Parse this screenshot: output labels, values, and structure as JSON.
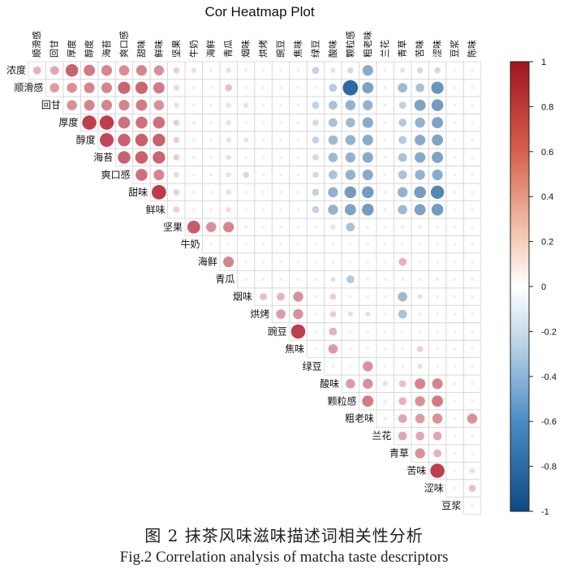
{
  "chart_data": {
    "type": "heatmap",
    "title": "Cor Heatmap Plot",
    "variables": [
      "浓度",
      "顺滑感",
      "回甘",
      "厚度",
      "醇度",
      "海苔",
      "爽口感",
      "甜味",
      "鲜味",
      "坚果",
      "牛奶",
      "海鲜",
      "青瓜",
      "烟味",
      "烘烤",
      "豌豆",
      "焦味",
      "绿豆",
      "酸味",
      "颗粒感",
      "粗老味",
      "兰花",
      "青草",
      "苦味",
      "涩味",
      "豆浆",
      "陈味"
    ],
    "correlations": [
      [
        "浓度",
        "顺滑感",
        0.25
      ],
      [
        "浓度",
        "回甘",
        0.3
      ],
      [
        "浓度",
        "厚度",
        0.62
      ],
      [
        "浓度",
        "醇度",
        0.5
      ],
      [
        "浓度",
        "海苔",
        0.45
      ],
      [
        "浓度",
        "爽口感",
        0.42
      ],
      [
        "浓度",
        "甜味",
        0.45
      ],
      [
        "浓度",
        "鲜味",
        0.4
      ],
      [
        "浓度",
        "坚果",
        0.15
      ],
      [
        "浓度",
        "牛奶",
        0.1
      ],
      [
        "浓度",
        "海鲜",
        0.05
      ],
      [
        "浓度",
        "青瓜",
        0.1
      ],
      [
        "浓度",
        "烟味",
        0.05
      ],
      [
        "浓度",
        "烘烤",
        -0.05
      ],
      [
        "浓度",
        "焦味",
        -0.05
      ],
      [
        "浓度",
        "绿豆",
        -0.2
      ],
      [
        "浓度",
        "酸味",
        -0.1
      ],
      [
        "浓度",
        "颗粒感",
        -0.15
      ],
      [
        "浓度",
        "粗老味",
        -0.45
      ],
      [
        "浓度",
        "兰花",
        -0.05
      ],
      [
        "浓度",
        "青草",
        -0.1
      ],
      [
        "浓度",
        "苦味",
        -0.15
      ],
      [
        "浓度",
        "涩味",
        -0.15
      ],
      [
        "顺滑感",
        "回甘",
        0.35
      ],
      [
        "顺滑感",
        "厚度",
        0.4
      ],
      [
        "顺滑感",
        "醇度",
        0.45
      ],
      [
        "顺滑感",
        "海苔",
        0.45
      ],
      [
        "顺滑感",
        "爽口感",
        0.6
      ],
      [
        "顺滑感",
        "甜味",
        0.6
      ],
      [
        "顺滑感",
        "鲜味",
        0.5
      ],
      [
        "顺滑感",
        "坚果",
        0.12
      ],
      [
        "顺滑感",
        "牛奶",
        0.05
      ],
      [
        "顺滑感",
        "青瓜",
        0.2
      ],
      [
        "顺滑感",
        "酸味",
        -0.25
      ],
      [
        "顺滑感",
        "颗粒感",
        -0.92
      ],
      [
        "顺滑感",
        "粗老味",
        -0.5
      ],
      [
        "顺滑感",
        "兰花",
        -0.05
      ],
      [
        "顺滑感",
        "青草",
        -0.35
      ],
      [
        "顺滑感",
        "苦味",
        -0.3
      ],
      [
        "顺滑感",
        "涩味",
        -0.6
      ],
      [
        "回甘",
        "厚度",
        0.4
      ],
      [
        "回甘",
        "醇度",
        0.45
      ],
      [
        "回甘",
        "海苔",
        0.45
      ],
      [
        "回甘",
        "爽口感",
        0.45
      ],
      [
        "回甘",
        "甜味",
        0.5
      ],
      [
        "回甘",
        "鲜味",
        0.4
      ],
      [
        "回甘",
        "坚果",
        0.1
      ],
      [
        "回甘",
        "牛奶",
        0.05
      ],
      [
        "回甘",
        "青瓜",
        0.1
      ],
      [
        "回甘",
        "烟味",
        -0.1
      ],
      [
        "回甘",
        "烘烤",
        -0.05
      ],
      [
        "回甘",
        "焦味",
        -0.05
      ],
      [
        "回甘",
        "绿豆",
        -0.2
      ],
      [
        "回甘",
        "酸味",
        -0.3
      ],
      [
        "回甘",
        "颗粒感",
        -0.4
      ],
      [
        "回甘",
        "粗老味",
        -0.4
      ],
      [
        "回甘",
        "兰花",
        -0.05
      ],
      [
        "回甘",
        "青草",
        -0.2
      ],
      [
        "回甘",
        "苦味",
        -0.5
      ],
      [
        "回甘",
        "涩味",
        -0.55
      ],
      [
        "厚度",
        "醇度",
        0.8
      ],
      [
        "厚度",
        "海苔",
        0.8
      ],
      [
        "厚度",
        "爽口感",
        0.55
      ],
      [
        "厚度",
        "甜味",
        0.55
      ],
      [
        "厚度",
        "鲜味",
        0.55
      ],
      [
        "厚度",
        "坚果",
        0.15
      ],
      [
        "厚度",
        "牛奶",
        0.05
      ],
      [
        "厚度",
        "青瓜",
        0.1
      ],
      [
        "厚度",
        "绿豆",
        -0.15
      ],
      [
        "厚度",
        "酸味",
        -0.3
      ],
      [
        "厚度",
        "颗粒感",
        -0.35
      ],
      [
        "厚度",
        "粗老味",
        -0.45
      ],
      [
        "厚度",
        "兰花",
        -0.05
      ],
      [
        "厚度",
        "青草",
        -0.25
      ],
      [
        "厚度",
        "苦味",
        -0.4
      ],
      [
        "厚度",
        "涩味",
        -0.5
      ],
      [
        "醇度",
        "海苔",
        0.75
      ],
      [
        "醇度",
        "爽口感",
        0.62
      ],
      [
        "醇度",
        "甜味",
        0.62
      ],
      [
        "醇度",
        "鲜味",
        0.62
      ],
      [
        "醇度",
        "坚果",
        0.15
      ],
      [
        "醇度",
        "牛奶",
        0.05
      ],
      [
        "醇度",
        "青瓜",
        0.1
      ],
      [
        "醇度",
        "烟味",
        -0.1
      ],
      [
        "醇度",
        "绿豆",
        -0.2
      ],
      [
        "醇度",
        "酸味",
        -0.35
      ],
      [
        "醇度",
        "颗粒感",
        -0.4
      ],
      [
        "醇度",
        "粗老味",
        -0.45
      ],
      [
        "醇度",
        "兰花",
        -0.05
      ],
      [
        "醇度",
        "青草",
        -0.25
      ],
      [
        "醇度",
        "苦味",
        -0.45
      ],
      [
        "醇度",
        "涩味",
        -0.5
      ],
      [
        "海苔",
        "爽口感",
        0.62
      ],
      [
        "海苔",
        "甜味",
        0.62
      ],
      [
        "海苔",
        "鲜味",
        0.6
      ],
      [
        "海苔",
        "坚果",
        0.15
      ],
      [
        "海苔",
        "牛奶",
        0.05
      ],
      [
        "海苔",
        "青瓜",
        0.1
      ],
      [
        "海苔",
        "绿豆",
        -0.15
      ],
      [
        "海苔",
        "酸味",
        -0.35
      ],
      [
        "海苔",
        "颗粒感",
        -0.4
      ],
      [
        "海苔",
        "粗老味",
        -0.45
      ],
      [
        "海苔",
        "兰花",
        -0.05
      ],
      [
        "海苔",
        "青草",
        -0.3
      ],
      [
        "海苔",
        "苦味",
        -0.45
      ],
      [
        "海苔",
        "涩味",
        -0.5
      ],
      [
        "爽口感",
        "甜味",
        0.55
      ],
      [
        "爽口感",
        "鲜味",
        0.45
      ],
      [
        "爽口感",
        "坚果",
        0.12
      ],
      [
        "爽口感",
        "牛奶",
        0.05
      ],
      [
        "爽口感",
        "海鲜",
        0.05
      ],
      [
        "爽口感",
        "青瓜",
        0.1
      ],
      [
        "爽口感",
        "烟味",
        -0.15
      ],
      [
        "爽口感",
        "绿豆",
        -0.15
      ],
      [
        "爽口感",
        "酸味",
        -0.3
      ],
      [
        "爽口感",
        "颗粒感",
        -0.4
      ],
      [
        "爽口感",
        "粗老味",
        -0.45
      ],
      [
        "爽口感",
        "兰花",
        -0.05
      ],
      [
        "爽口感",
        "青草",
        -0.3
      ],
      [
        "爽口感",
        "苦味",
        -0.4
      ],
      [
        "爽口感",
        "涩味",
        -0.45
      ],
      [
        "甜味",
        "鲜味",
        0.82
      ],
      [
        "甜味",
        "坚果",
        0.15
      ],
      [
        "甜味",
        "牛奶",
        0.05
      ],
      [
        "甜味",
        "青瓜",
        0.1
      ],
      [
        "甜味",
        "绿豆",
        -0.2
      ],
      [
        "甜味",
        "酸味",
        -0.4
      ],
      [
        "甜味",
        "颗粒感",
        -0.55
      ],
      [
        "甜味",
        "粗老味",
        -0.55
      ],
      [
        "甜味",
        "兰花",
        -0.05
      ],
      [
        "甜味",
        "青草",
        -0.4
      ],
      [
        "甜味",
        "苦味",
        -0.55
      ],
      [
        "甜味",
        "涩味",
        -0.7
      ],
      [
        "鲜味",
        "坚果",
        0.15
      ],
      [
        "鲜味",
        "牛奶",
        0.05
      ],
      [
        "鲜味",
        "青瓜",
        0.1
      ],
      [
        "鲜味",
        "绿豆",
        -0.2
      ],
      [
        "鲜味",
        "酸味",
        -0.4
      ],
      [
        "鲜味",
        "颗粒感",
        -0.5
      ],
      [
        "鲜味",
        "粗老味",
        -0.55
      ],
      [
        "鲜味",
        "兰花",
        -0.05
      ],
      [
        "鲜味",
        "青草",
        -0.35
      ],
      [
        "鲜味",
        "苦味",
        -0.5
      ],
      [
        "鲜味",
        "涩味",
        -0.55
      ],
      [
        "坚果",
        "牛奶",
        0.65
      ],
      [
        "坚果",
        "海鲜",
        0.4
      ],
      [
        "坚果",
        "青瓜",
        0.45
      ],
      [
        "坚果",
        "酸味",
        -0.1
      ],
      [
        "坚果",
        "颗粒感",
        -0.3
      ],
      [
        "坚果",
        "粗老味",
        -0.05
      ],
      [
        "坚果",
        "青草",
        -0.05
      ],
      [
        "坚果",
        "苦味",
        -0.05
      ],
      [
        "海鲜",
        "青瓜",
        0.45
      ],
      [
        "海鲜",
        "青草",
        0.25
      ],
      [
        "青瓜",
        "酸味",
        -0.1
      ],
      [
        "青瓜",
        "颗粒感",
        -0.25
      ],
      [
        "青瓜",
        "粗老味",
        -0.05
      ],
      [
        "青瓜",
        "苦味",
        -0.05
      ],
      [
        "青瓜",
        "涩味",
        -0.05
      ],
      [
        "烟味",
        "烘烤",
        0.2
      ],
      [
        "烟味",
        "豌豆",
        0.25
      ],
      [
        "烟味",
        "焦味",
        0.4
      ],
      [
        "烟味",
        "酸味",
        0.15
      ],
      [
        "烟味",
        "青草",
        -0.35
      ],
      [
        "烟味",
        "苦味",
        -0.1
      ],
      [
        "烘烤",
        "豌豆",
        0.35
      ],
      [
        "烘烤",
        "焦味",
        0.4
      ],
      [
        "烘烤",
        "酸味",
        0.15
      ],
      [
        "烘烤",
        "颗粒感",
        0.1
      ],
      [
        "烘烤",
        "粗老味",
        0.1
      ],
      [
        "烘烤",
        "青草",
        -0.3
      ],
      [
        "烘烤",
        "苦味",
        -0.05
      ],
      [
        "豌豆",
        "焦味",
        0.8
      ],
      [
        "豌豆",
        "酸味",
        0.25
      ],
      [
        "焦味",
        "酸味",
        0.35
      ],
      [
        "焦味",
        "苦味",
        0.15
      ],
      [
        "绿豆",
        "粗老味",
        0.4
      ],
      [
        "绿豆",
        "苦味",
        0.1
      ],
      [
        "酸味",
        "颗粒感",
        0.35
      ],
      [
        "酸味",
        "粗老味",
        0.4
      ],
      [
        "酸味",
        "兰花",
        0.1
      ],
      [
        "酸味",
        "青草",
        0.2
      ],
      [
        "酸味",
        "苦味",
        0.45
      ],
      [
        "酸味",
        "涩味",
        0.45
      ],
      [
        "颗粒感",
        "粗老味",
        0.5
      ],
      [
        "颗粒感",
        "兰花",
        0.05
      ],
      [
        "颗粒感",
        "青草",
        0.25
      ],
      [
        "颗粒感",
        "苦味",
        0.4
      ],
      [
        "颗粒感",
        "涩味",
        0.5
      ],
      [
        "粗老味",
        "兰花",
        0.05
      ],
      [
        "粗老味",
        "青草",
        0.3
      ],
      [
        "粗老味",
        "苦味",
        0.35
      ],
      [
        "粗老味",
        "涩味",
        0.4
      ],
      [
        "粗老味",
        "陈味",
        0.4
      ],
      [
        "兰花",
        "青草",
        0.3
      ],
      [
        "兰花",
        "苦味",
        0.3
      ],
      [
        "兰花",
        "涩味",
        0.3
      ],
      [
        "青草",
        "苦味",
        0.4
      ],
      [
        "青草",
        "涩味",
        0.25
      ],
      [
        "苦味",
        "涩味",
        0.8
      ],
      [
        "苦味",
        "陈味",
        0.1
      ],
      [
        "涩味",
        "陈味",
        0.2
      ]
    ],
    "colorbar": {
      "range": [
        -1,
        1
      ],
      "ticks": [
        "1",
        "0.8",
        "0.6",
        "0.4",
        "0.2",
        "0",
        "-0.2",
        "-0.4",
        "-0.6",
        "-0.8",
        "-1"
      ],
      "colors": {
        "negative": "#1f5f9a",
        "zero": "#ffffff",
        "positive": "#b2182b"
      }
    }
  },
  "caption": {
    "chinese": "图 2  抹茶风味滋味描述词相关性分析",
    "english": "Fig.2 Correlation analysis of matcha taste descriptors"
  }
}
